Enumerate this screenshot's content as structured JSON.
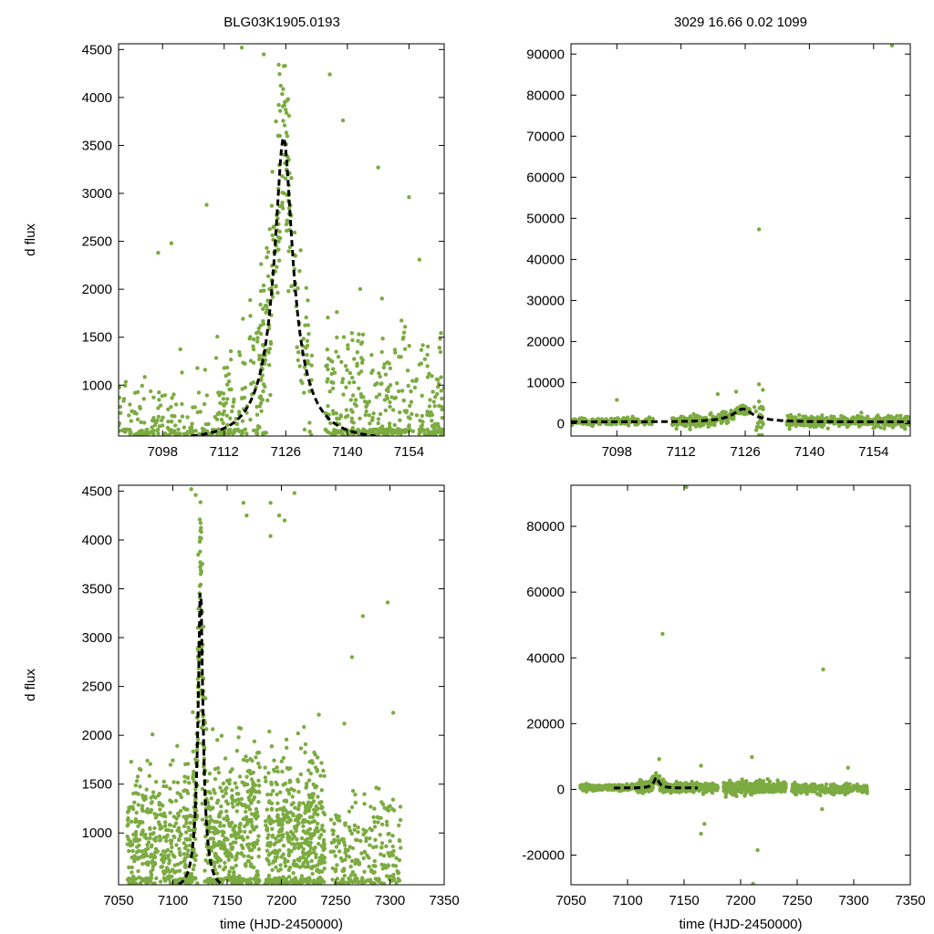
{
  "figure": {
    "title_left": "BLG03K1905.0193",
    "title_right": "3029  16.66  0.02  1099"
  },
  "colors": {
    "points": "#7cab41",
    "model": "#000000",
    "frame": "#000000"
  },
  "chart_data": [
    {
      "id": "top-left",
      "type": "scatter",
      "title": "BLG03K1905.0193",
      "ylabel": "d flux",
      "xlabel": "",
      "xlim": [
        7088,
        7162
      ],
      "ylim": [
        470,
        4560
      ],
      "xticks": [
        7098,
        7112,
        7126,
        7140,
        7154
      ],
      "yticks": [
        1000,
        1500,
        2000,
        2500,
        3000,
        3500,
        4000,
        4500
      ],
      "series": [
        {
          "name": "observations",
          "kind": "points",
          "clusters": [
            {
              "x0": 7088,
              "x1": 7106,
              "n": 140,
              "base": "model",
              "sigma": 260
            },
            {
              "x0": 7106,
              "x1": 7112,
              "n": 40,
              "base": "model",
              "sigma": 380
            },
            {
              "x0": 7110,
              "x1": 7120,
              "n": 110,
              "base": "model",
              "sigma": 420
            },
            {
              "x0": 7120,
              "x1": 7127,
              "n": 170,
              "base": "model",
              "sigma": 520
            },
            {
              "x0": 7127,
              "x1": 7132,
              "n": 50,
              "base": "model",
              "sigma": 380
            },
            {
              "x0": 7135,
              "x1": 7162,
              "n": 420,
              "base": "model",
              "sigma": 520
            }
          ],
          "extra_points": [
            [
              7100,
              2480
            ],
            [
              7108,
              2880
            ],
            [
              7116,
              4520
            ],
            [
              7121,
              4450
            ],
            [
              7136,
              4240
            ],
            [
              7139,
              3760
            ],
            [
              7147,
              3270
            ],
            [
              7154,
              2960
            ],
            [
              7097,
              2380
            ]
          ]
        },
        {
          "name": "model",
          "kind": "pspl",
          "t0": 7125.5,
          "peak": 3640,
          "base": -600,
          "amp": 7600,
          "tau": 5.5,
          "style": "dashed"
        }
      ]
    },
    {
      "id": "top-right",
      "type": "scatter",
      "title": "3029  16.66  0.02  1099",
      "ylabel": "",
      "xlabel": "",
      "xlim": [
        7088,
        7162
      ],
      "ylim": [
        -3000,
        92500
      ],
      "xticks": [
        7098,
        7112,
        7126,
        7140,
        7154
      ],
      "yticks": [
        0,
        10000,
        20000,
        30000,
        40000,
        50000,
        60000,
        70000,
        80000,
        90000
      ],
      "series": [
        {
          "name": "observations",
          "kind": "points",
          "clusters": [
            {
              "x0": 7088,
              "x1": 7106,
              "n": 180,
              "base": "model",
              "sigma": 420
            },
            {
              "x0": 7110,
              "x1": 7127,
              "n": 260,
              "base": "model",
              "sigma": 650
            },
            {
              "x0": 7128,
              "x1": 7130,
              "n": 25,
              "base": "model",
              "sigma": 2600
            },
            {
              "x0": 7135,
              "x1": 7162,
              "n": 460,
              "base": "model",
              "sigma": 650
            }
          ],
          "extra_points": [
            [
              7129,
              47300
            ],
            [
              7158,
              92500
            ],
            [
              7098,
              5800
            ],
            [
              7120,
              7200
            ],
            [
              7124,
              7800
            ],
            [
              7129,
              -3000
            ],
            [
              7129,
              9600
            ]
          ]
        },
        {
          "name": "model",
          "kind": "pspl",
          "t0": 7125.5,
          "peak": 3640,
          "base": -600,
          "amp": 7600,
          "tau": 5.5,
          "style": "dashed"
        }
      ]
    },
    {
      "id": "bottom-left",
      "type": "scatter",
      "title": "",
      "ylabel": "d flux",
      "xlabel": "time (HJD-2450000)",
      "xlim": [
        7050,
        7350
      ],
      "ylim": [
        470,
        4560
      ],
      "xticks": [
        7050,
        7100,
        7150,
        7200,
        7250,
        7300,
        7350
      ],
      "yticks": [
        1000,
        1500,
        2000,
        2500,
        3000,
        3500,
        4000,
        4500
      ],
      "series": [
        {
          "name": "observations",
          "kind": "points",
          "clusters": [
            {
              "x0": 7058,
              "x1": 7108,
              "n": 300,
              "base": 900,
              "sigma": 380
            },
            {
              "x0": 7110,
              "x1": 7130,
              "n": 260,
              "base": "model",
              "sigma": 520
            },
            {
              "x0": 7130,
              "x1": 7180,
              "n": 420,
              "base": 950,
              "sigma": 480
            },
            {
              "x0": 7185,
              "x1": 7240,
              "n": 480,
              "base": 950,
              "sigma": 460
            },
            {
              "x0": 7245,
              "x1": 7310,
              "n": 220,
              "base": 800,
              "sigma": 330
            }
          ],
          "extra_points": [
            [
              7117,
              4520
            ],
            [
              7121,
              4460
            ],
            [
              7165,
              4380
            ],
            [
              7190,
              4380
            ],
            [
              7198,
              4250
            ],
            [
              7203,
              4200
            ],
            [
              7212,
              4480
            ],
            [
              7168,
              4250
            ],
            [
              7275,
              3220
            ],
            [
              7298,
              3360
            ],
            [
              7303,
              2230
            ],
            [
              7265,
              2800
            ],
            [
              7190,
              4040
            ],
            [
              7258,
              2120
            ]
          ]
        },
        {
          "name": "model",
          "kind": "pspl",
          "t0": 7125.5,
          "peak": 3640,
          "base": -600,
          "amp": 7600,
          "tau": 5.5,
          "style": "dashed"
        }
      ]
    },
    {
      "id": "bottom-right",
      "type": "scatter",
      "title": "",
      "ylabel": "",
      "xlabel": "time (HJD-2450000)",
      "xlim": [
        7050,
        7350
      ],
      "ylim": [
        -29000,
        92500
      ],
      "xticks": [
        7050,
        7100,
        7150,
        7200,
        7250,
        7300,
        7350
      ],
      "yticks": [
        -20000,
        0,
        20000,
        40000,
        60000,
        80000
      ],
      "series": [
        {
          "name": "observations",
          "kind": "points",
          "clusters": [
            {
              "x0": 7058,
              "x1": 7108,
              "n": 300,
              "base": "model",
              "sigma": 420
            },
            {
              "x0": 7108,
              "x1": 7135,
              "n": 220,
              "base": "model",
              "sigma": 900
            },
            {
              "x0": 7135,
              "x1": 7180,
              "n": 380,
              "base": "model",
              "sigma": 600
            },
            {
              "x0": 7185,
              "x1": 7240,
              "n": 440,
              "base": "model",
              "sigma": 900
            },
            {
              "x0": 7245,
              "x1": 7312,
              "n": 300,
              "base": 0,
              "sigma": 700
            }
          ],
          "extra_points": [
            [
              7131,
              47300
            ],
            [
              7152,
              92500
            ],
            [
              7273,
              36500
            ],
            [
              7211,
              -29000
            ],
            [
              7215,
              -18500
            ],
            [
              7165,
              -13500
            ],
            [
              7168,
              -10500
            ],
            [
              7272,
              -6000
            ],
            [
              7128,
              9200
            ],
            [
              7210,
              9800
            ],
            [
              7165,
              7200
            ],
            [
              7295,
              6600
            ]
          ]
        },
        {
          "name": "model",
          "kind": "pspl",
          "t0": 7125.5,
          "peak": 3640,
          "base": -600,
          "amp": 7600,
          "tau": 5.5,
          "style": "dashed",
          "x_range": [
            7088,
            7162
          ]
        }
      ]
    }
  ]
}
